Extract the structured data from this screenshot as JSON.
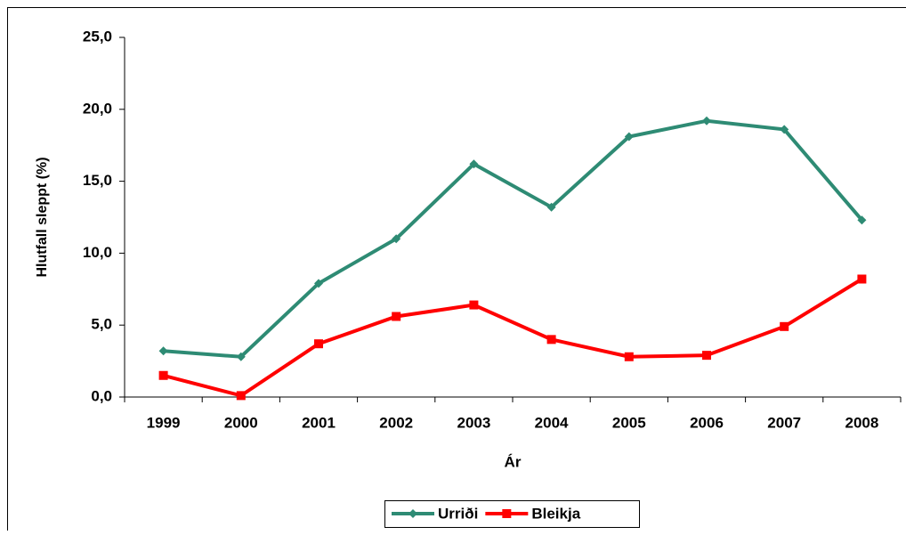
{
  "chart_data": {
    "type": "line",
    "xlabel": "Ár",
    "ylabel": "Hlutfall sleppt (%)",
    "categories": [
      "1999",
      "2000",
      "2001",
      "2002",
      "2003",
      "2004",
      "2005",
      "2006",
      "2007",
      "2008"
    ],
    "series": [
      {
        "name": "Urriði",
        "color": "#2e8b74",
        "marker": "diamond",
        "values": [
          3.2,
          2.8,
          7.9,
          11.0,
          16.2,
          13.2,
          18.1,
          19.2,
          18.6,
          12.3
        ]
      },
      {
        "name": "Bleikja",
        "color": "#ff0000",
        "marker": "square",
        "values": [
          1.5,
          0.1,
          3.7,
          5.6,
          6.4,
          4.0,
          2.8,
          2.9,
          4.9,
          8.2
        ]
      }
    ],
    "ylim": [
      0,
      25
    ],
    "yticks": [
      {
        "value": 0,
        "label": "0,0"
      },
      {
        "value": 5,
        "label": "5,0"
      },
      {
        "value": 10,
        "label": "10,0"
      },
      {
        "value": 15,
        "label": "15,0"
      },
      {
        "value": 20,
        "label": "20,0"
      },
      {
        "value": 25,
        "label": "25,0"
      }
    ],
    "grid": false,
    "legend": "bottom"
  }
}
